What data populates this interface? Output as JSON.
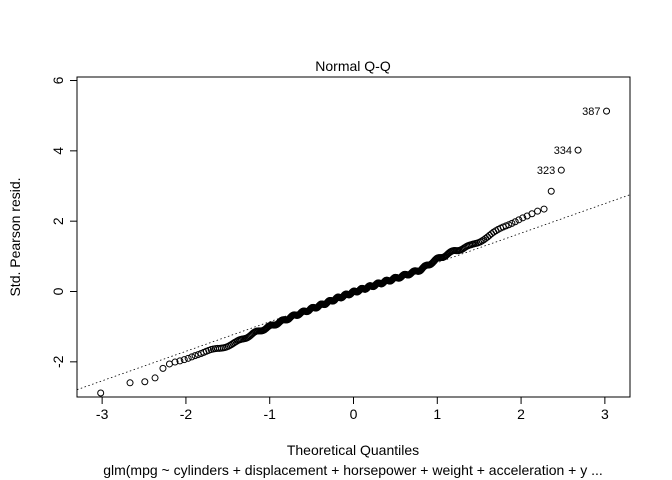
{
  "chart_data": {
    "type": "scatter",
    "title": "Normal Q-Q",
    "xlabel": "Theoretical Quantiles",
    "ylabel": "Std. Pearson resid.",
    "subtitle": "glm(mpg ~ cylinders + displacement + horsepower + weight + acceleration + y ...",
    "xlim": [
      -3.3,
      3.3
    ],
    "ylim": [
      -3.0,
      6.1
    ],
    "x_ticks": [
      -3,
      -2,
      -1,
      0,
      1,
      2,
      3
    ],
    "y_ticks": [
      -2,
      0,
      2,
      4,
      6
    ],
    "reference_line": {
      "intercept": -0.02,
      "slope": 0.84,
      "style": "dotted"
    },
    "n_points": 392,
    "points": [],
    "quantile_curve": [
      [
        -3.02,
        -2.9
      ],
      [
        -2.68,
        -2.62
      ],
      [
        -2.5,
        -2.6
      ],
      [
        -2.39,
        -2.55
      ],
      [
        -2.27,
        -2.2
      ],
      [
        -2.18,
        -2.05
      ],
      [
        -2.05,
        -1.95
      ],
      [
        -1.9,
        -1.8
      ],
      [
        -1.6,
        -1.62
      ],
      [
        -1.4,
        -1.45
      ],
      [
        -1.2,
        -1.2
      ],
      [
        -1.0,
        -1.0
      ],
      [
        -0.7,
        -0.68
      ],
      [
        -0.4,
        -0.4
      ],
      [
        -0.2,
        -0.2
      ],
      [
        0.0,
        -0.02
      ],
      [
        0.3,
        0.22
      ],
      [
        0.6,
        0.45
      ],
      [
        0.8,
        0.62
      ],
      [
        1.0,
        0.92
      ],
      [
        1.2,
        1.15
      ],
      [
        1.4,
        1.3
      ],
      [
        1.6,
        1.55
      ],
      [
        1.8,
        1.85
      ],
      [
        2.0,
        2.1
      ],
      [
        2.1,
        2.18
      ],
      [
        2.25,
        2.32
      ]
    ],
    "outliers": [
      {
        "label": "323",
        "x": 2.48,
        "y": 3.45
      },
      {
        "label": "334",
        "x": 2.68,
        "y": 4.02
      },
      {
        "label": "387",
        "x": 3.02,
        "y": 5.13
      }
    ],
    "extra_points": [
      {
        "x": 2.36,
        "y": 2.85
      }
    ],
    "grid": false,
    "legend": "none"
  }
}
